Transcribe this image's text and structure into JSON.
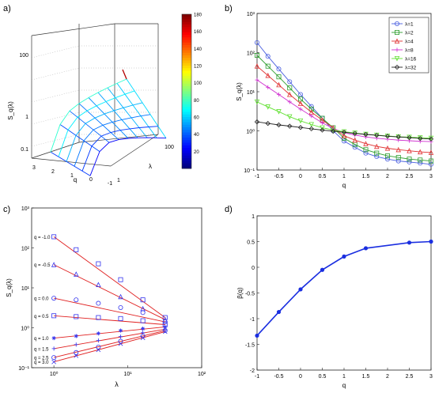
{
  "panels": {
    "a": {
      "label": "a)"
    },
    "b": {
      "label": "b)"
    },
    "c": {
      "label": "c)"
    },
    "d": {
      "label": "d)"
    }
  },
  "chart_data": [
    {
      "panel": "a)",
      "type": "surface",
      "zlabel": "S_q(λ)",
      "xlabel": "q",
      "ylabel": "λ",
      "zscale": "log",
      "q_ticks": [
        "3",
        "2",
        "1",
        "0",
        "-1"
      ],
      "lambda_ticks": [
        "1",
        "100"
      ],
      "z_ticks": [
        "0.1",
        "1",
        "100"
      ],
      "colorbar_ticks": [
        "180",
        "160",
        "140",
        "120",
        "100",
        "80",
        "60",
        "40",
        "20"
      ],
      "colorbar_range": [
        0,
        180
      ],
      "q": [
        -1,
        -0.5,
        0,
        0.5,
        1,
        1.5,
        2,
        2.5,
        3
      ],
      "lambda": [
        1,
        2,
        4,
        8,
        16,
        32
      ],
      "peak": {
        "q": -1,
        "lambda": 1,
        "value": 180
      },
      "grid": true
    },
    {
      "panel": "b)",
      "type": "line",
      "xlabel": "q",
      "ylabel": "S_q(λ)",
      "yscale": "log",
      "xlim": [
        -1,
        3
      ],
      "ylim": [
        0.1,
        1000
      ],
      "x_ticks": [
        "-1",
        "-0.5",
        "0",
        "0.5",
        "1",
        "1.5",
        "2",
        "2.5",
        "3"
      ],
      "y_ticks": [
        "10⁻¹",
        "10⁰",
        "10¹",
        "10²",
        "10³"
      ],
      "legend_position": "top-right",
      "x": [
        -1,
        -0.75,
        -0.5,
        -0.25,
        0,
        0.25,
        0.5,
        0.75,
        1,
        1.25,
        1.5,
        1.75,
        2,
        2.25,
        2.5,
        2.75,
        3
      ],
      "series": [
        {
          "name": "λ=1",
          "color": "#4a5fe0",
          "marker": "circle",
          "values": [
            180,
            80,
            38,
            18,
            8.5,
            4.2,
            2.1,
            1.0,
            0.55,
            0.38,
            0.27,
            0.22,
            0.19,
            0.17,
            0.16,
            0.15,
            0.14
          ]
        },
        {
          "name": "λ=2",
          "color": "#2e9e2e",
          "marker": "square",
          "values": [
            85,
            45,
            24,
            12.5,
            6.5,
            3.6,
            2.1,
            1.2,
            0.65,
            0.45,
            0.33,
            0.27,
            0.23,
            0.21,
            0.19,
            0.18,
            0.17
          ]
        },
        {
          "name": "λ=4",
          "color": "#e03030",
          "marker": "triangle",
          "values": [
            45,
            26,
            15,
            8.5,
            5,
            3,
            1.9,
            1.2,
            0.75,
            0.58,
            0.47,
            0.4,
            0.36,
            0.33,
            0.31,
            0.29,
            0.28
          ]
        },
        {
          "name": "λ=8",
          "color": "#d030d0",
          "marker": "plus",
          "values": [
            20,
            13,
            8.5,
            5.5,
            3.6,
            2.4,
            1.6,
            1.15,
            0.9,
            0.78,
            0.7,
            0.65,
            0.61,
            0.58,
            0.56,
            0.54,
            0.53
          ]
        },
        {
          "name": "λ=16",
          "color": "#60e030",
          "marker": "down-triangle",
          "values": [
            5.5,
            4.1,
            3.1,
            2.3,
            1.8,
            1.45,
            1.2,
            1.05,
            0.95,
            0.88,
            0.82,
            0.78,
            0.74,
            0.71,
            0.69,
            0.67,
            0.65
          ]
        },
        {
          "name": "λ=32",
          "color": "#222222",
          "marker": "diamond",
          "values": [
            1.7,
            1.55,
            1.42,
            1.32,
            1.22,
            1.13,
            1.05,
            0.98,
            0.92,
            0.86,
            0.81,
            0.77,
            0.73,
            0.7,
            0.67,
            0.64,
            0.62
          ]
        }
      ]
    },
    {
      "panel": "c)",
      "type": "scatter",
      "xlabel": "λ",
      "ylabel": "S_q(λ)",
      "xscale": "log",
      "yscale": "log",
      "xlim": [
        0.5,
        100
      ],
      "ylim": [
        0.1,
        1000
      ],
      "x_ticks": [
        "10⁰",
        "10¹",
        "10²"
      ],
      "y_ticks": [
        "10⁻¹",
        "10⁰",
        "10¹",
        "10²",
        "10³"
      ],
      "x": [
        1,
        2,
        4,
        8,
        16,
        32
      ],
      "series": [
        {
          "name": "q = -1.0",
          "marker": "square",
          "values": [
            190,
            90,
            40,
            16,
            5,
            1.8
          ]
        },
        {
          "name": "q = -0.5",
          "marker": "triangle",
          "values": [
            38,
            22,
            12,
            6,
            3,
            1.6
          ]
        },
        {
          "name": "q = 0.0",
          "marker": "circle",
          "values": [
            5.5,
            5,
            4.1,
            3.2,
            2.4,
            1.4
          ]
        },
        {
          "name": "q = 0.5",
          "marker": "square",
          "values": [
            2.0,
            1.9,
            1.8,
            1.7,
            1.5,
            1.2
          ]
        },
        {
          "name": "q = 1.0",
          "marker": "star",
          "values": [
            0.55,
            0.62,
            0.72,
            0.85,
            0.95,
            1.05
          ]
        },
        {
          "name": "q = 1.5",
          "marker": "plus",
          "values": [
            0.3,
            0.38,
            0.48,
            0.6,
            0.75,
            0.92
          ]
        },
        {
          "name": "q = 2.5",
          "marker": "circle",
          "values": [
            0.18,
            0.24,
            0.33,
            0.46,
            0.62,
            0.85
          ]
        },
        {
          "name": "q = 3.0",
          "marker": "x",
          "values": [
            0.14,
            0.2,
            0.28,
            0.4,
            0.56,
            0.8
          ]
        }
      ],
      "fit_color": "#e02020",
      "marker_color": "#3333ee"
    },
    {
      "panel": "d)",
      "type": "line",
      "xlabel": "q",
      "ylabel": "β(q)",
      "xlim": [
        -1,
        3
      ],
      "ylim": [
        -2,
        1
      ],
      "x_ticks": [
        "-1",
        "-0.5",
        "0",
        "0.5",
        "1",
        "1.5",
        "2",
        "2.5",
        "3"
      ],
      "y_ticks": [
        "-2",
        "-1.5",
        "-1",
        "-0.5",
        "0",
        "0.5",
        "1"
      ],
      "series": [
        {
          "name": "",
          "color": "#1a2ee0",
          "x": [
            -1,
            -0.5,
            0,
            0.5,
            1,
            1.5,
            2.5,
            3
          ],
          "values": [
            -1.33,
            -0.87,
            -0.43,
            -0.05,
            0.21,
            0.37,
            0.48,
            0.5
          ]
        }
      ]
    }
  ]
}
